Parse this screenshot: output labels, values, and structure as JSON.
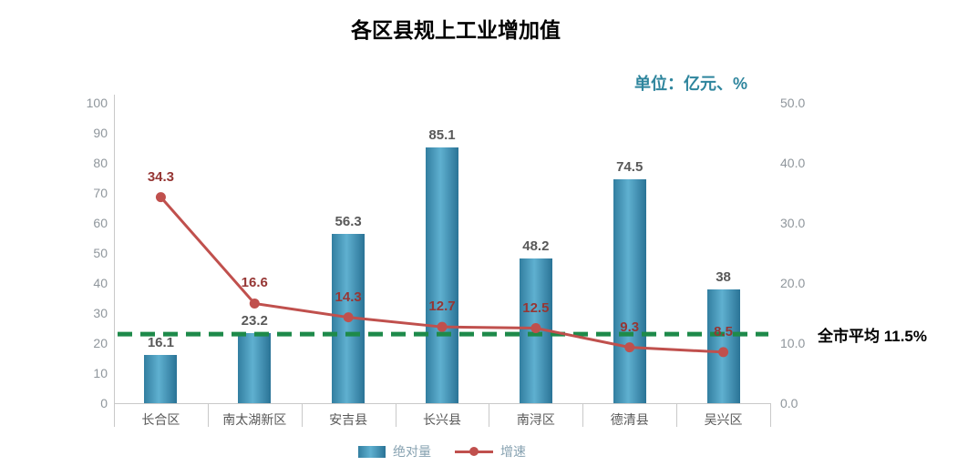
{
  "title": "各区县规上工业增加值",
  "unit_label": "单位：亿元、%",
  "chart_data": {
    "type": "bar+line",
    "categories": [
      "长合区",
      "南太湖新区",
      "安吉县",
      "长兴县",
      "南浔区",
      "德清县",
      "吴兴区"
    ],
    "series": [
      {
        "name": "绝对量",
        "type": "bar",
        "axis": "left",
        "values": [
          16.1,
          23.2,
          56.3,
          85.1,
          48.2,
          74.5,
          38
        ]
      },
      {
        "name": "增速",
        "type": "line",
        "axis": "right",
        "values": [
          34.3,
          16.6,
          14.3,
          12.7,
          12.5,
          9.3,
          8.5
        ]
      }
    ],
    "left_axis": {
      "min": 0,
      "max": 100,
      "step": 10
    },
    "right_axis": {
      "min": 0,
      "max": 50,
      "step": 10,
      "decimals": 1
    },
    "reference_line": {
      "value": 11.5,
      "axis": "right",
      "label": "全市平均 11.5%"
    },
    "legend_position": "bottom",
    "grid": false
  },
  "colors": {
    "bar_fill_light": "#5fb0d0",
    "bar_fill_dark": "#2a7396",
    "bar_label": "#595959",
    "line": "#c0504d",
    "line_label": "#963634",
    "reference_line": "#1e8a4a",
    "axis_text": "#8f969c",
    "category_text": "#595959",
    "unit_text": "#2e859d",
    "title_text": "#000000",
    "average_text": "#000000",
    "legend_text": "#87a2b1",
    "axis_line": "#c9c9c9"
  }
}
